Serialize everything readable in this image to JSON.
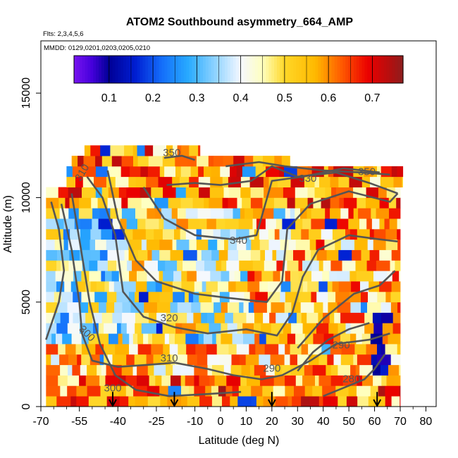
{
  "chart_data": {
    "type": "heatmap",
    "title": "ATOM2 Southbound asymmetry_664_AMP",
    "flights_note": "Flts: 2,3,4,5,6",
    "mmdd_note": "MMDD: 0129,0201,0203,0205,0210",
    "xlabel": "Latitude (deg N)",
    "ylabel": "Altitude (m)",
    "xlim": [
      -70,
      84
    ],
    "ylim": [
      0,
      17500
    ],
    "x_ticks": [
      "-70",
      "-55",
      "-40",
      "-25",
      "-10",
      "0",
      "10",
      "20",
      "30",
      "40",
      "50",
      "60",
      "70",
      "80"
    ],
    "x_tick_values": [
      -70,
      -55,
      -40,
      -25,
      -10,
      0,
      10,
      20,
      30,
      40,
      50,
      60,
      70,
      80
    ],
    "y_ticks": [
      "0",
      "5000",
      "10000",
      "15000"
    ],
    "y_tick_values": [
      0,
      5000,
      10000,
      15000
    ],
    "colorbar": {
      "ticks": [
        "0.1",
        "0.2",
        "0.3",
        "0.4",
        "0.5",
        "0.6",
        "0.7"
      ],
      "tick_values": [
        0.1,
        0.2,
        0.3,
        0.4,
        0.5,
        0.6,
        0.7
      ],
      "range": [
        0.02,
        0.77
      ]
    },
    "contour_labels": [
      "350",
      "330",
      "350",
      "340",
      "320",
      "310",
      "300",
      "290",
      "290",
      "300",
      "280",
      "310"
    ],
    "profile_markers_lat": [
      -42,
      -18,
      20,
      61
    ],
    "grid": false,
    "legend": "colorbar top"
  }
}
